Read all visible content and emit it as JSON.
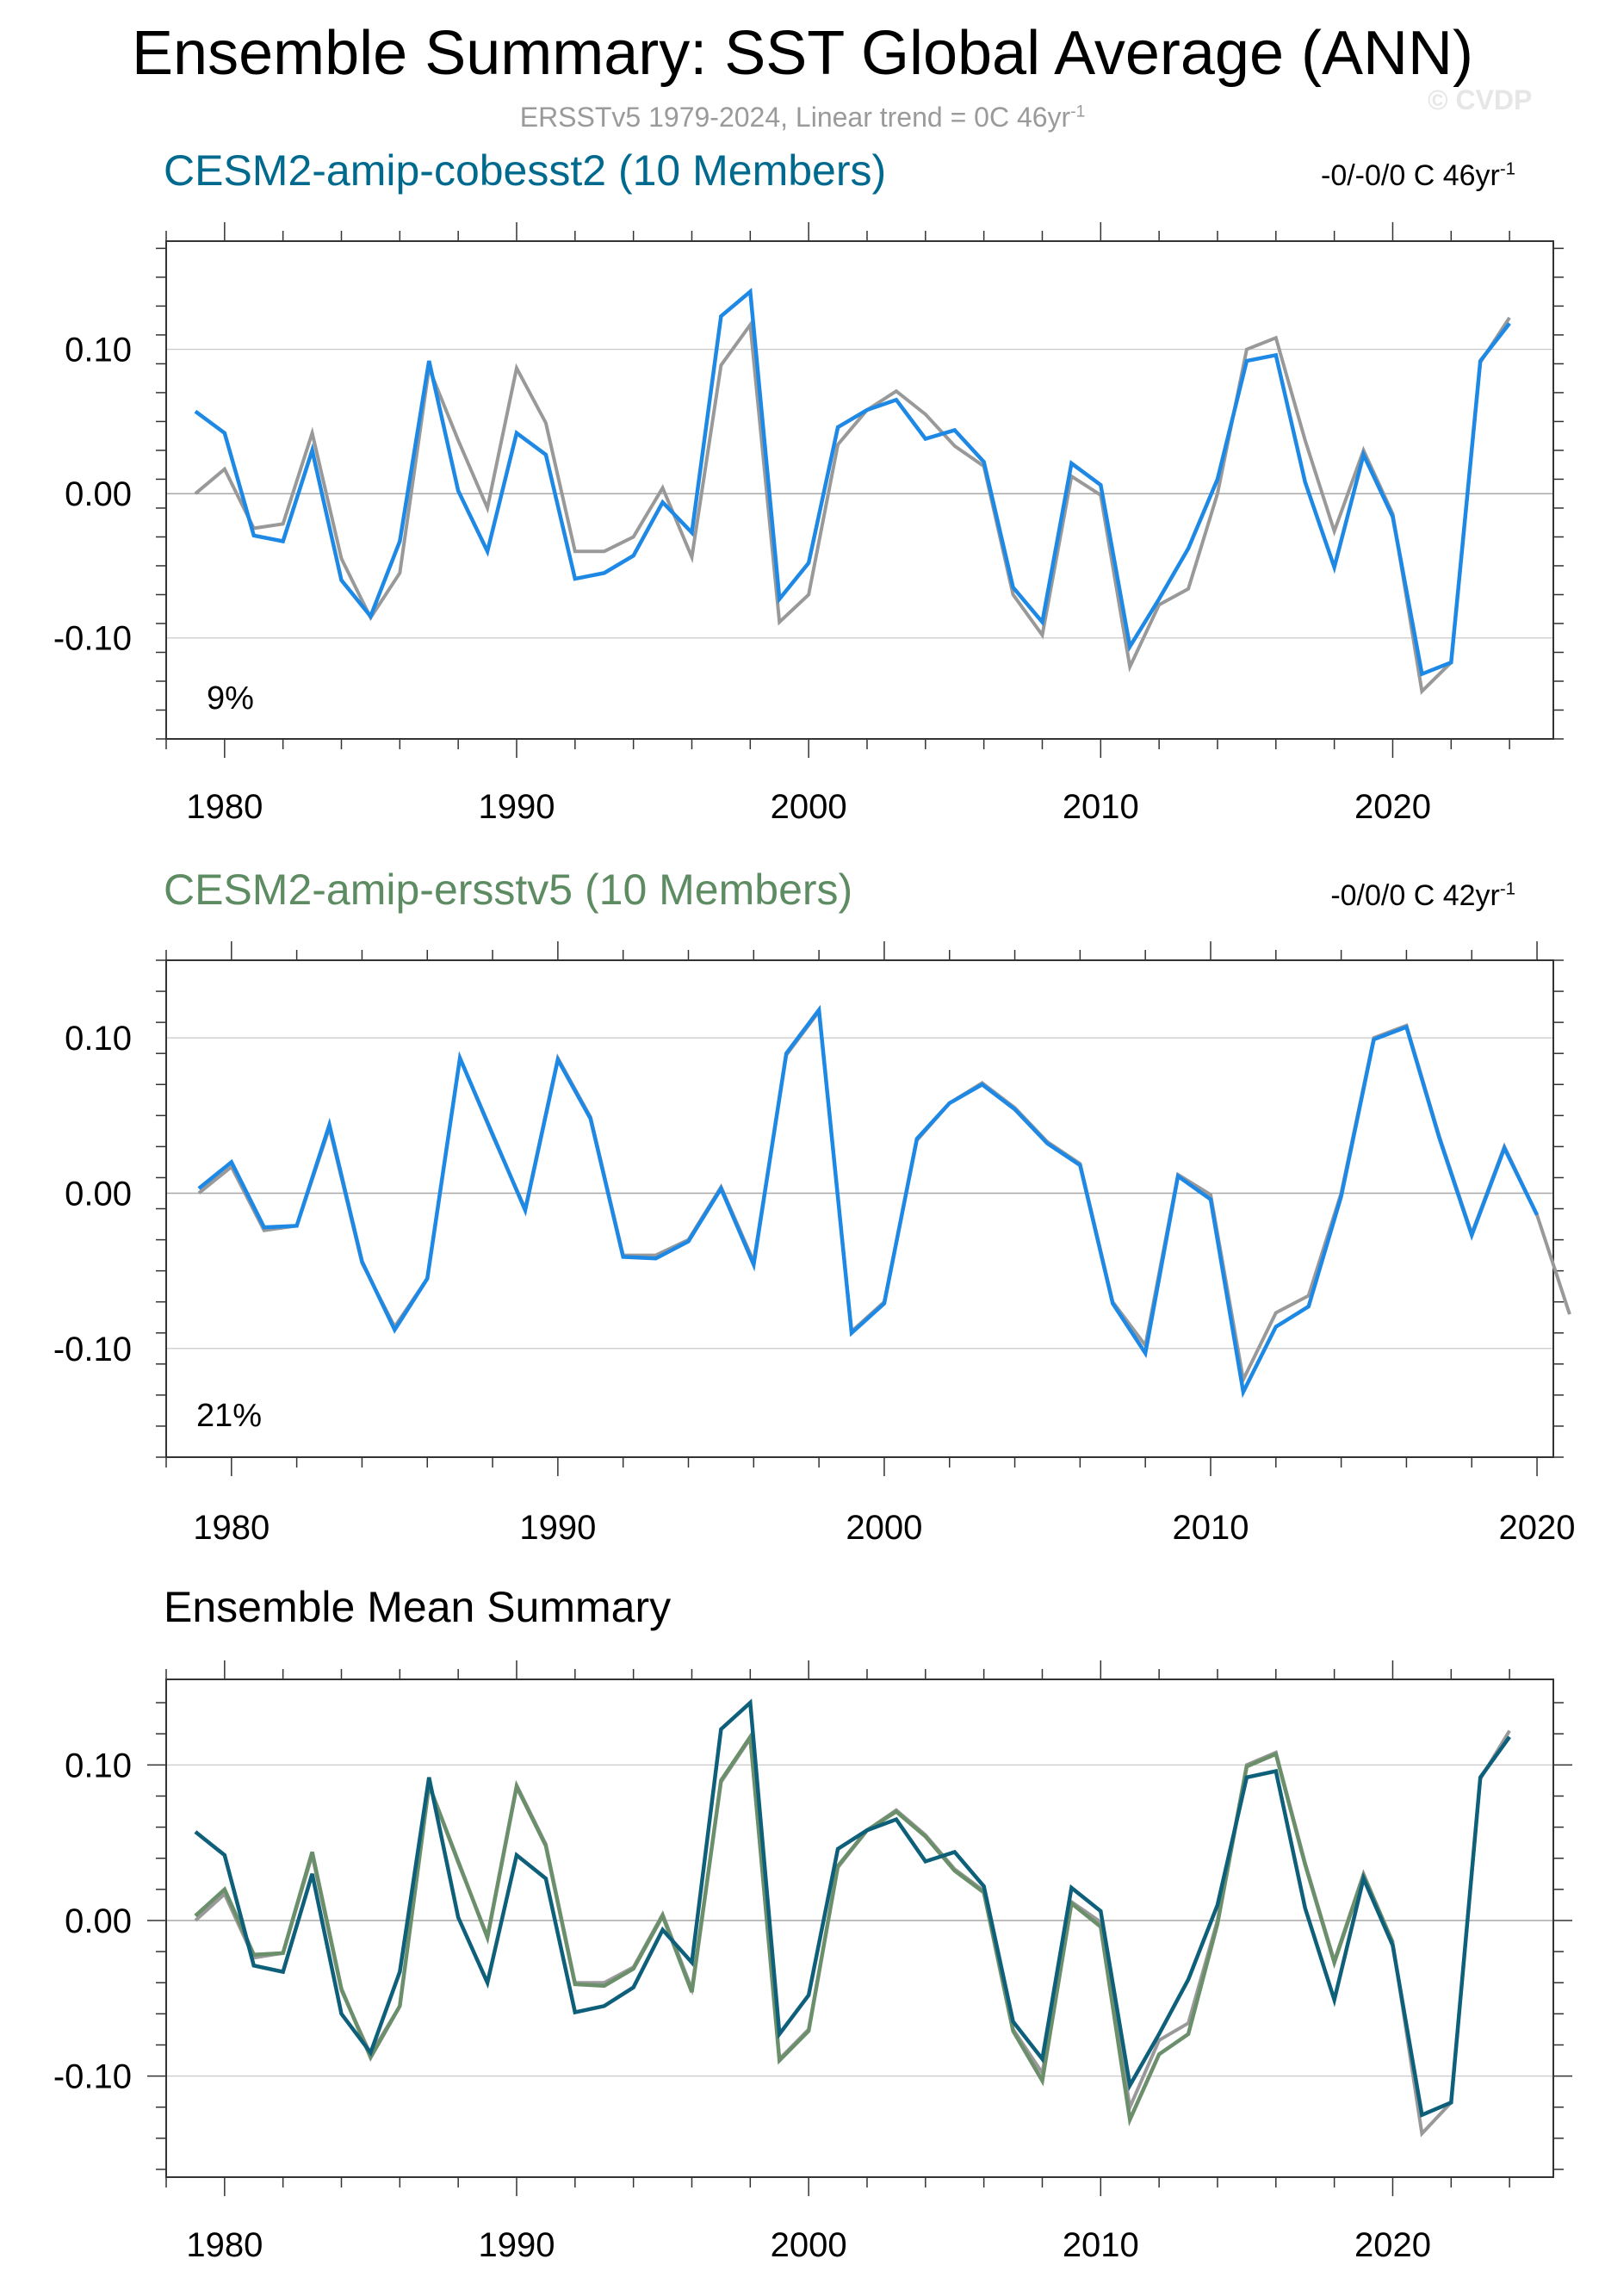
{
  "title": "Ensemble Summary: SST Global Average (ANN)",
  "subtitle": {
    "prefix": "ERSSTv5 1979-2024, Linear trend = 0C 46yr",
    "sup": "-1"
  },
  "copyright": "© CVDP",
  "colors": {
    "observed": "#999999",
    "cobesst2": "#1e88e5",
    "cobesst2_title": "#006a8e",
    "ersstv5_title": "#5e8c62",
    "summary_cobesst2": "#0d5f7a",
    "summary_ersstv5": "#6b8f6b"
  },
  "chart_data": [
    {
      "type": "line",
      "title": "CESM2-amip-cobesst2 (10 Members)",
      "trend_text": "-0/-0/0 C 46yr",
      "trend_sup": "-1",
      "annotation": "9%",
      "xlim": [
        1978,
        2025.5
      ],
      "ylim": [
        -0.17,
        0.175
      ],
      "xticks": [
        1980,
        1990,
        2000,
        2010,
        2020
      ],
      "ytick_labels": [
        "0.10",
        "0.00",
        "-0.10"
      ],
      "yticks": [
        0.1,
        0.0,
        -0.1
      ],
      "series": [
        {
          "name": "ERSSTv5",
          "color_key": "observed",
          "x_start": 1979,
          "values": [
            0.0,
            0.017,
            -0.024,
            -0.021,
            0.042,
            -0.045,
            -0.086,
            -0.055,
            0.087,
            0.037,
            -0.01,
            0.087,
            0.049,
            -0.04,
            -0.04,
            -0.03,
            0.004,
            -0.044,
            0.089,
            0.117,
            -0.089,
            -0.07,
            0.034,
            0.058,
            0.071,
            0.055,
            0.033,
            0.019,
            -0.07,
            -0.098,
            0.012,
            -0.001,
            -0.12,
            -0.077,
            -0.066,
            0.0,
            0.1,
            0.108,
            0.037,
            -0.026,
            0.03,
            -0.014,
            -0.137,
            -0.117,
            0.091,
            0.122
          ]
        },
        {
          "name": "CESM2-amip-cobesst2",
          "color_key": "cobesst2",
          "x_start": 1979,
          "values": [
            0.057,
            0.042,
            -0.029,
            -0.033,
            0.03,
            -0.06,
            -0.085,
            -0.033,
            0.092,
            0.002,
            -0.04,
            0.042,
            0.027,
            -0.059,
            -0.055,
            -0.043,
            -0.006,
            -0.027,
            0.123,
            0.14,
            -0.073,
            -0.048,
            0.046,
            0.058,
            0.065,
            0.038,
            0.044,
            0.022,
            -0.065,
            -0.089,
            0.021,
            0.006,
            -0.106,
            -0.073,
            -0.038,
            0.01,
            0.092,
            0.096,
            0.008,
            -0.051,
            0.027,
            -0.016,
            -0.125,
            -0.117,
            0.092,
            0.118
          ]
        }
      ]
    },
    {
      "type": "line",
      "title": "CESM2-amip-ersstv5 (10 Members)",
      "trend_text": "-0/0/0 C 42yr",
      "trend_sup": "-1",
      "annotation": "21%",
      "xlim": [
        1978,
        2020.5
      ],
      "ylim": [
        -0.17,
        0.15
      ],
      "xticks": [
        1980,
        1990,
        2000,
        2010,
        2020
      ],
      "ytick_labels": [
        "0.10",
        "0.00",
        "-0.10"
      ],
      "yticks": [
        0.1,
        0.0,
        -0.1
      ],
      "series": [
        {
          "name": "ERSSTv5",
          "color_key": "observed",
          "x_start": 1979,
          "values": [
            0.0,
            0.017,
            -0.024,
            -0.021,
            0.042,
            -0.045,
            -0.086,
            -0.055,
            0.087,
            0.037,
            -0.01,
            0.087,
            0.049,
            -0.04,
            -0.04,
            -0.03,
            0.004,
            -0.044,
            0.089,
            0.117,
            -0.089,
            -0.07,
            0.034,
            0.058,
            0.071,
            0.055,
            0.033,
            0.019,
            -0.07,
            -0.098,
            0.012,
            -0.001,
            -0.12,
            -0.077,
            -0.066,
            0.0,
            0.1,
            0.108,
            0.037,
            -0.026,
            0.03,
            -0.014,
            -0.078
          ]
        },
        {
          "name": "CESM2-amip-ersstv5",
          "color_key": "cobesst2",
          "x_start": 1979,
          "values": [
            0.003,
            0.02,
            -0.022,
            -0.021,
            0.044,
            -0.044,
            -0.088,
            -0.055,
            0.087,
            0.038,
            -0.011,
            0.086,
            0.048,
            -0.041,
            -0.042,
            -0.031,
            0.003,
            -0.046,
            0.09,
            0.118,
            -0.09,
            -0.071,
            0.035,
            0.058,
            0.07,
            0.054,
            0.032,
            0.018,
            -0.071,
            -0.103,
            0.011,
            -0.004,
            -0.128,
            -0.086,
            -0.073,
            -0.002,
            0.099,
            0.107,
            0.036,
            -0.027,
            0.029,
            -0.014
          ]
        }
      ]
    },
    {
      "type": "line",
      "title": "Ensemble Mean Summary",
      "xlim": [
        1978,
        2025.5
      ],
      "ylim": [
        -0.165,
        0.155
      ],
      "xticks": [
        1980,
        1990,
        2000,
        2010,
        2020
      ],
      "ytick_labels": [
        "0.10",
        "0.00",
        "-0.10"
      ],
      "yticks": [
        0.1,
        0.0,
        -0.1
      ],
      "series": [
        {
          "name": "ERSSTv5",
          "color_key": "observed",
          "x_start": 1979,
          "values": [
            0.0,
            0.017,
            -0.024,
            -0.021,
            0.042,
            -0.045,
            -0.086,
            -0.055,
            0.087,
            0.037,
            -0.01,
            0.087,
            0.049,
            -0.04,
            -0.04,
            -0.03,
            0.004,
            -0.044,
            0.089,
            0.117,
            -0.089,
            -0.07,
            0.034,
            0.058,
            0.071,
            0.055,
            0.033,
            0.019,
            -0.07,
            -0.098,
            0.012,
            -0.001,
            -0.12,
            -0.077,
            -0.066,
            0.0,
            0.1,
            0.108,
            0.037,
            -0.026,
            0.03,
            -0.014,
            -0.137,
            -0.117,
            0.091,
            0.122
          ]
        },
        {
          "name": "CESM2-amip-ersstv5",
          "color_key": "summary_ersstv5",
          "x_start": 1979,
          "values": [
            0.003,
            0.02,
            -0.022,
            -0.021,
            0.044,
            -0.044,
            -0.088,
            -0.055,
            0.087,
            0.038,
            -0.011,
            0.086,
            0.048,
            -0.041,
            -0.042,
            -0.031,
            0.003,
            -0.046,
            0.09,
            0.118,
            -0.09,
            -0.071,
            0.035,
            0.058,
            0.07,
            0.054,
            0.032,
            0.018,
            -0.071,
            -0.103,
            0.011,
            -0.004,
            -0.128,
            -0.086,
            -0.073,
            -0.002,
            0.099,
            0.107,
            0.036,
            -0.027,
            0.029,
            -0.014
          ]
        },
        {
          "name": "CESM2-amip-cobesst2",
          "color_key": "summary_cobesst2",
          "x_start": 1979,
          "values": [
            0.057,
            0.042,
            -0.029,
            -0.033,
            0.03,
            -0.06,
            -0.085,
            -0.033,
            0.092,
            0.002,
            -0.04,
            0.042,
            0.027,
            -0.059,
            -0.055,
            -0.043,
            -0.006,
            -0.027,
            0.123,
            0.14,
            -0.073,
            -0.048,
            0.046,
            0.058,
            0.065,
            0.038,
            0.044,
            0.022,
            -0.065,
            -0.089,
            0.021,
            0.006,
            -0.106,
            -0.073,
            -0.038,
            0.01,
            0.092,
            0.096,
            0.008,
            -0.051,
            0.027,
            -0.016,
            -0.125,
            -0.117,
            0.092,
            0.118
          ]
        }
      ]
    }
  ]
}
